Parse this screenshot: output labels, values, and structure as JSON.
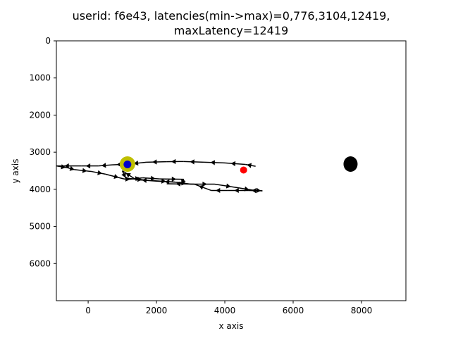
{
  "chart_data": {
    "type": "scatter",
    "title_lines": [
      "userid: f6e43, latencies(min->max)=0,776,3104,12419,",
      "maxLatency=12419"
    ],
    "xlabel": "x axis",
    "ylabel": "y axis",
    "xlim": [
      -930,
      9300
    ],
    "ylim": [
      7000,
      0
    ],
    "y_inverted": true,
    "grid": false,
    "x_ticks": [
      0,
      2000,
      4000,
      6000,
      8000
    ],
    "x_tick_labels": [
      "0",
      "2000",
      "4000",
      "6000",
      "8000"
    ],
    "y_ticks": [
      0,
      1000,
      2000,
      3000,
      4000,
      5000,
      6000
    ],
    "y_tick_labels": [
      "0",
      "1000",
      "2000",
      "3000",
      "4000",
      "5000",
      "6000"
    ],
    "path": [
      [
        4900,
        3380
      ],
      [
        4600,
        3330
      ],
      [
        4000,
        3290
      ],
      [
        3400,
        3270
      ],
      [
        2800,
        3250
      ],
      [
        2300,
        3255
      ],
      [
        1700,
        3270
      ],
      [
        1200,
        3320
      ],
      [
        700,
        3340
      ],
      [
        300,
        3370
      ],
      [
        -200,
        3370
      ],
      [
        -930,
        3370
      ],
      [
        -600,
        3420
      ],
      [
        -400,
        3470
      ],
      [
        100,
        3520
      ],
      [
        500,
        3590
      ],
      [
        1050,
        3720
      ],
      [
        1200,
        3730
      ],
      [
        1600,
        3690
      ],
      [
        2100,
        3720
      ],
      [
        2800,
        3730
      ],
      [
        2750,
        3820
      ],
      [
        2000,
        3780
      ],
      [
        1400,
        3740
      ],
      [
        1000,
        3500
      ],
      [
        1100,
        3700
      ],
      [
        1800,
        3760
      ],
      [
        2500,
        3800
      ],
      [
        3000,
        3860
      ],
      [
        3700,
        3860
      ],
      [
        4400,
        3960
      ],
      [
        4800,
        4020
      ],
      [
        5100,
        4040
      ],
      [
        4700,
        4030
      ],
      [
        4100,
        4030
      ],
      [
        3600,
        4030
      ],
      [
        3100,
        3860
      ],
      [
        2300,
        3850
      ]
    ],
    "markers": [
      {
        "name": "yellow-marker",
        "x": 1150,
        "y": 3320,
        "color": "#bfbf00",
        "r": 11
      },
      {
        "name": "blue-marker",
        "x": 1150,
        "y": 3330,
        "color": "#0000cc",
        "r": 5.5
      },
      {
        "name": "red-marker",
        "x": 4550,
        "y": 3480,
        "color": "#ff0000",
        "r": 5
      },
      {
        "name": "black-marker",
        "x": 7680,
        "y": 3320,
        "color": "#000000",
        "r": 10,
        "ry": 11
      }
    ],
    "colors": {
      "path": "#000000",
      "frame": "#000000"
    }
  }
}
